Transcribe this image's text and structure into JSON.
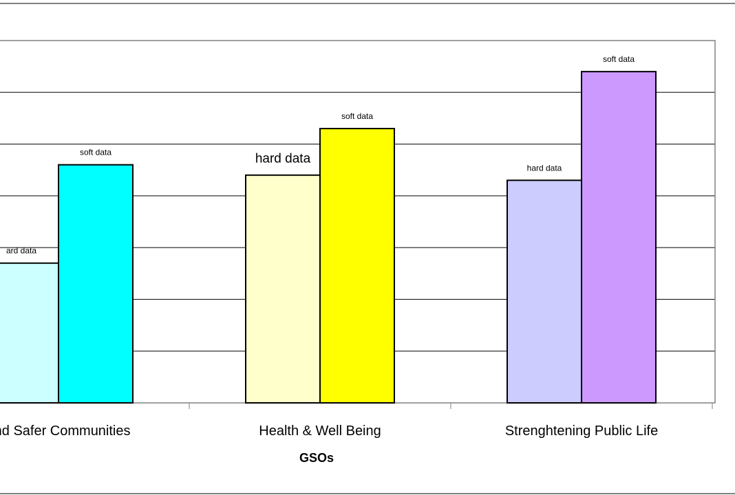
{
  "chart_data": {
    "type": "bar",
    "categories": [
      "and Safer Communities",
      "Health & Well Being",
      "Strenghtening Public Life"
    ],
    "series": [
      {
        "values": [
          2.7,
          4.4,
          4.3
        ],
        "colors": [
          "#ccffff",
          "#ffffcc",
          "#ccccff"
        ],
        "labels": [
          "ard data",
          "hard data",
          "hard data"
        ]
      },
      {
        "values": [
          4.6,
          5.3,
          6.4
        ],
        "colors": [
          "#00ffff",
          "#ffff00",
          "#cc99ff"
        ],
        "labels": [
          "soft data",
          "soft data",
          "soft data"
        ]
      }
    ],
    "title": "",
    "xlabel": "GSOs",
    "ylabel": "",
    "ylim": [
      0,
      7
    ],
    "grid": true
  }
}
